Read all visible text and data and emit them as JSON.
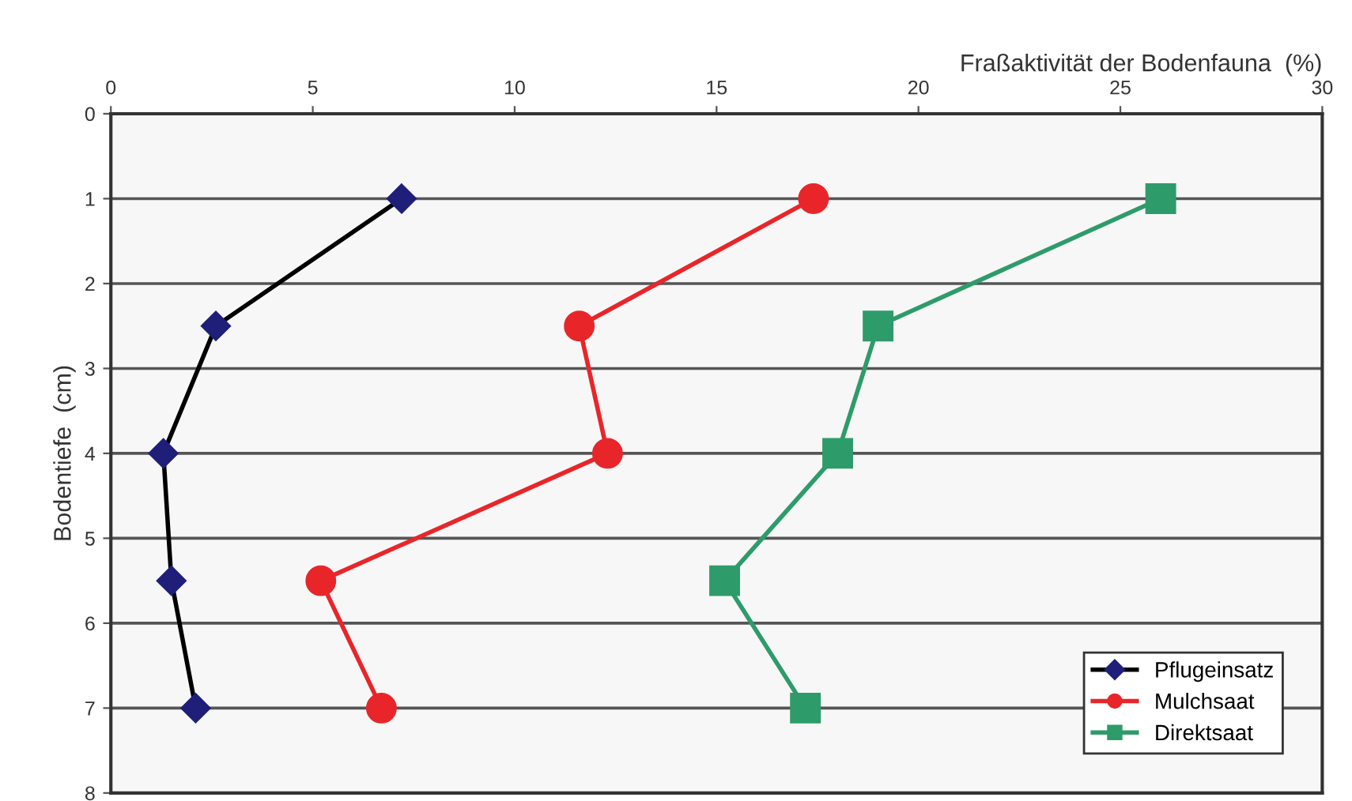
{
  "chart_data": {
    "type": "line",
    "xlabel": "Fraßaktivität der Bodenfauna  (%)",
    "ylabel": "Bodentiefe  (cm)",
    "xlim": [
      0,
      30
    ],
    "xticks": [
      0,
      5,
      10,
      15,
      20,
      25,
      30
    ],
    "ylim": [
      8,
      0
    ],
    "yticks": [
      0,
      1,
      2,
      3,
      4,
      5,
      6,
      7,
      8
    ],
    "grid": "y",
    "legend": "bottom right",
    "series": [
      {
        "name": "Pflugeinsatz",
        "color": "#1f1f7a",
        "marker": "diamond",
        "x": [
          7.2,
          2.6,
          1.3,
          1.5,
          2.1
        ],
        "values": [
          1,
          2.5,
          4,
          5.5,
          7
        ]
      },
      {
        "name": "Mulchsaat",
        "color": "#e8262a",
        "marker": "circle",
        "x": [
          17.4,
          11.6,
          12.3,
          5.2,
          6.7
        ],
        "values": [
          1,
          2.5,
          4,
          5.5,
          7
        ]
      },
      {
        "name": "Direktsaat",
        "color": "#2e9b6a",
        "marker": "square",
        "x": [
          26.0,
          19.0,
          18.0,
          15.2,
          17.2
        ],
        "values": [
          1,
          2.5,
          4,
          5.5,
          7
        ]
      }
    ]
  }
}
